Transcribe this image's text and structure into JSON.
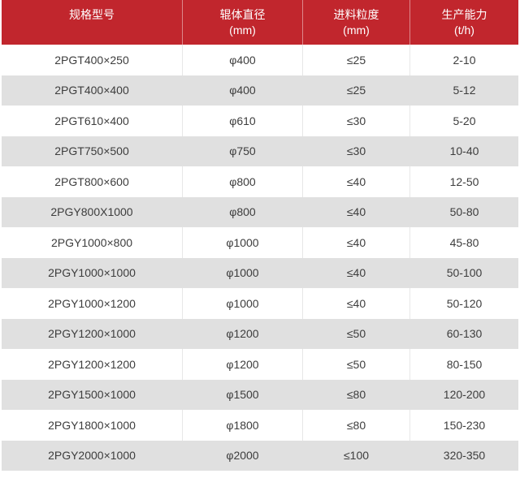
{
  "colors": {
    "header_bg": "#c1262d",
    "header_text": "#ffffff",
    "row_bg": "#ffffff",
    "row_alt_bg": "#e0e0e0",
    "body_text": "#3d3d3d",
    "divider": "#e7e7e7"
  },
  "table": {
    "headers": [
      {
        "title": "规格型号",
        "unit": ""
      },
      {
        "title": "辊体直径",
        "unit": "(mm)"
      },
      {
        "title": "进料粒度",
        "unit": "(mm)"
      },
      {
        "title": "生产能力",
        "unit": "(t/h)"
      }
    ],
    "rows": [
      [
        "2PGT400×250",
        "φ400",
        "≤25",
        "2-10"
      ],
      [
        "2PGT400×400",
        "φ400",
        "≤25",
        "5-12"
      ],
      [
        "2PGT610×400",
        "φ610",
        "≤30",
        "5-20"
      ],
      [
        "2PGT750×500",
        "φ750",
        "≤30",
        "10-40"
      ],
      [
        "2PGT800×600",
        "φ800",
        "≤40",
        "12-50"
      ],
      [
        "2PGY800X1000",
        "φ800",
        "≤40",
        "50-80"
      ],
      [
        "2PGY1000×800",
        "φ1000",
        "≤40",
        "45-80"
      ],
      [
        "2PGY1000×1000",
        "φ1000",
        "≤40",
        "50-100"
      ],
      [
        "2PGY1000×1200",
        "φ1000",
        "≤40",
        "50-120"
      ],
      [
        "2PGY1200×1000",
        "φ1200",
        "≤50",
        "60-130"
      ],
      [
        "2PGY1200×1200",
        "φ1200",
        "≤50",
        "80-150"
      ],
      [
        "2PGY1500×1000",
        "φ1500",
        "≤80",
        "120-200"
      ],
      [
        "2PGY1800×1000",
        "φ1800",
        "≤80",
        "150-230"
      ],
      [
        "2PGY2000×1000",
        "φ2000",
        "≤100",
        "320-350"
      ]
    ]
  },
  "chart_data": {
    "type": "table",
    "title": "",
    "columns": [
      "规格型号",
      "辊体直径 (mm)",
      "进料粒度 (mm)",
      "生产能力 (t/h)"
    ],
    "rows": [
      [
        "2PGT400×250",
        "φ400",
        "≤25",
        "2-10"
      ],
      [
        "2PGT400×400",
        "φ400",
        "≤25",
        "5-12"
      ],
      [
        "2PGT610×400",
        "φ610",
        "≤30",
        "5-20"
      ],
      [
        "2PGT750×500",
        "φ750",
        "≤30",
        "10-40"
      ],
      [
        "2PGT800×600",
        "φ800",
        "≤40",
        "12-50"
      ],
      [
        "2PGY800X1000",
        "φ800",
        "≤40",
        "50-80"
      ],
      [
        "2PGY1000×800",
        "φ1000",
        "≤40",
        "45-80"
      ],
      [
        "2PGY1000×1000",
        "φ1000",
        "≤40",
        "50-100"
      ],
      [
        "2PGY1000×1200",
        "φ1000",
        "≤40",
        "50-120"
      ],
      [
        "2PGY1200×1000",
        "φ1200",
        "≤50",
        "60-130"
      ],
      [
        "2PGY1200×1200",
        "φ1200",
        "≤50",
        "80-150"
      ],
      [
        "2PGY1500×1000",
        "φ1500",
        "≤80",
        "120-200"
      ],
      [
        "2PGY1800×1000",
        "φ1800",
        "≤80",
        "150-230"
      ],
      [
        "2PGY2000×1000",
        "φ2000",
        "≤100",
        "320-350"
      ]
    ],
    "layout": {
      "striped": true,
      "header_bg": "#c1262d",
      "stripe_bg": "#e0e0e0"
    }
  }
}
